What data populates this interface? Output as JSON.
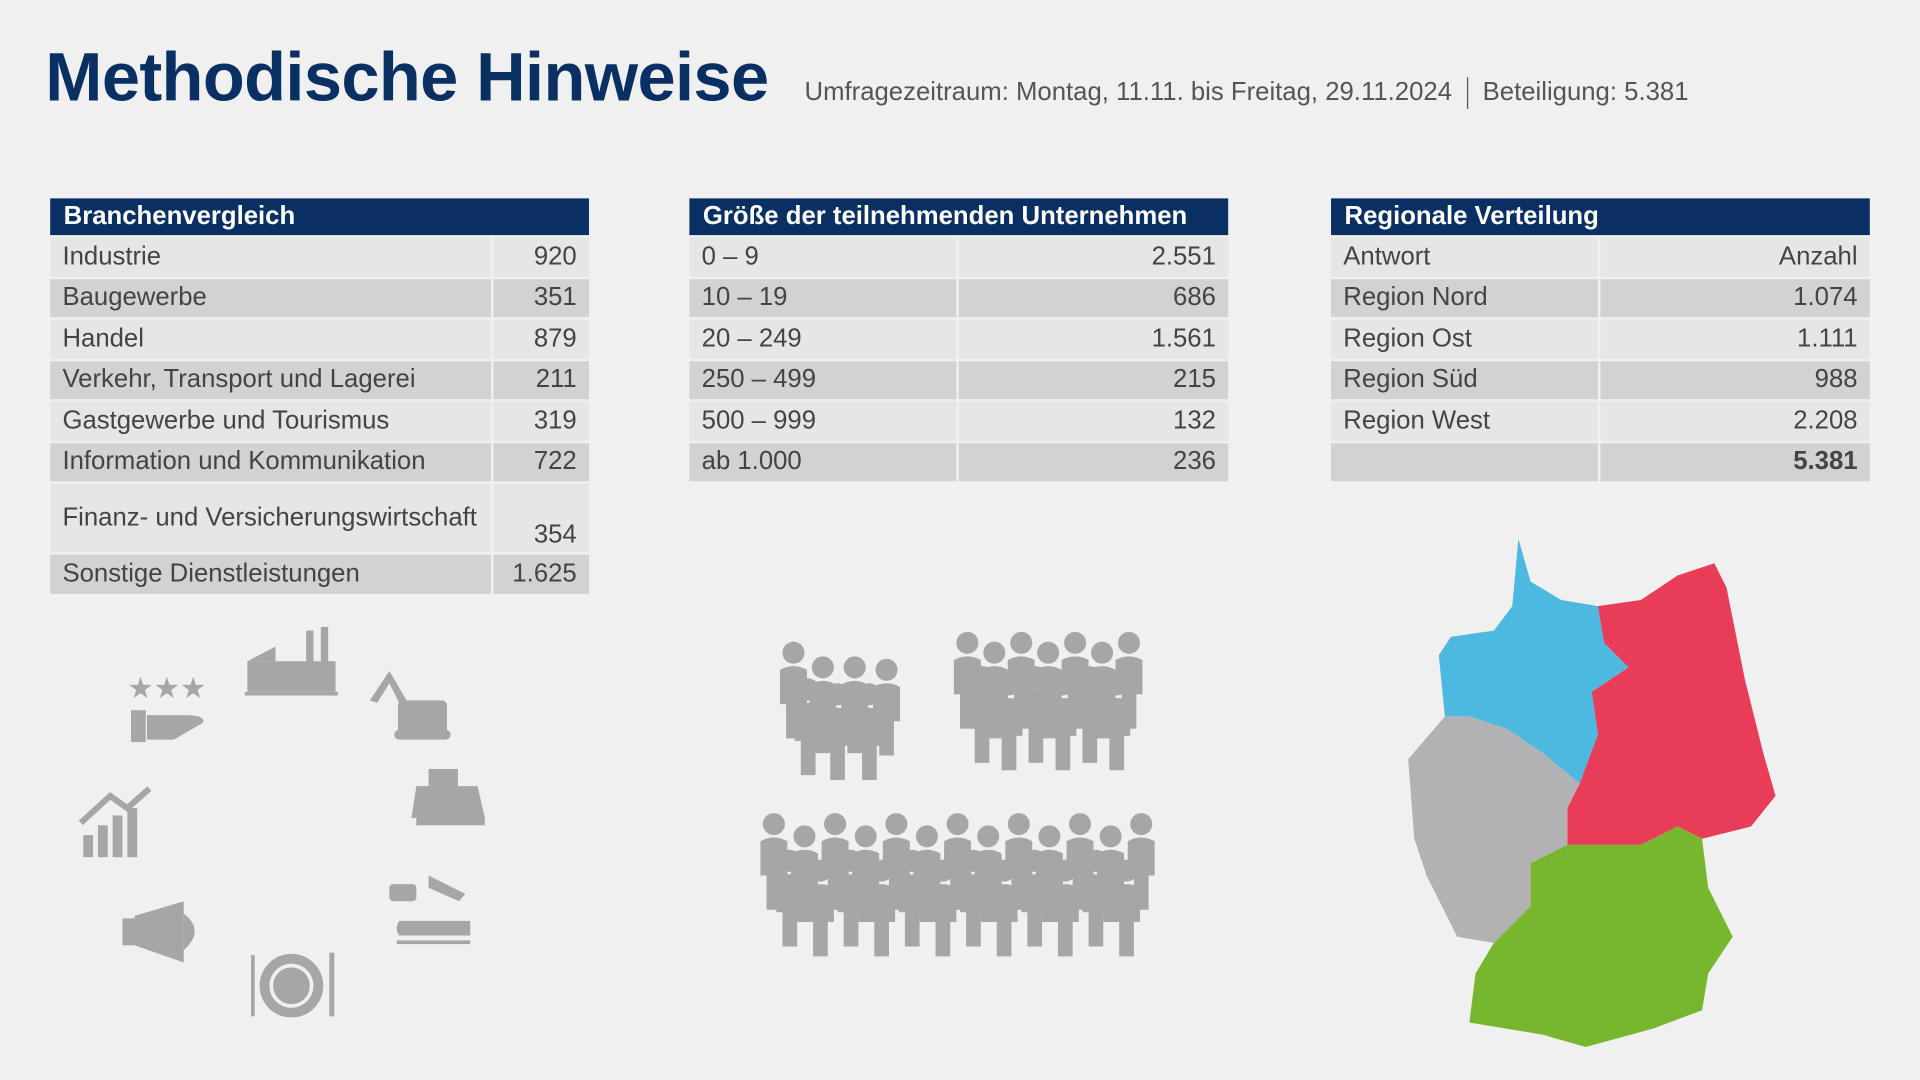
{
  "header": {
    "title": "Methodische Hinweise",
    "period": "Umfragezeitraum: Montag, 11.11. bis Freitag, 29.11.2024",
    "participation": "Beteiligung: 5.381"
  },
  "branchen": {
    "title": "Branchenvergleich",
    "rows": [
      {
        "label": "Industrie",
        "value": "920"
      },
      {
        "label": "Baugewerbe",
        "value": "351"
      },
      {
        "label": "Handel",
        "value": "879"
      },
      {
        "label": "Verkehr, Transport und Lagerei",
        "value": "211"
      },
      {
        "label": "Gastgewerbe und Tourismus",
        "value": "319"
      },
      {
        "label": "Information und Kommunikation",
        "value": "722"
      },
      {
        "label": "Finanz- und Versicherungswirtschaft",
        "value": "354"
      },
      {
        "label": "Sonstige Dienstleistungen",
        "value": "1.625"
      }
    ]
  },
  "groesse": {
    "title": "Größe der teilnehmenden Unternehmen",
    "rows": [
      {
        "label": "0 – 9",
        "value": "2.551"
      },
      {
        "label": "10 – 19",
        "value": "686"
      },
      {
        "label": "20 – 249",
        "value": "1.561"
      },
      {
        "label": "250 – 499",
        "value": "215"
      },
      {
        "label": "500 – 999",
        "value": "132"
      },
      {
        "label": "ab 1.000",
        "value": "236"
      }
    ]
  },
  "regional": {
    "title": "Regionale Verteilung",
    "col_label": "Antwort",
    "col_value": "Anzahl",
    "rows": [
      {
        "label": "Region Nord",
        "value": "1.074"
      },
      {
        "label": "Region Ost",
        "value": "1.111"
      },
      {
        "label": "Region Süd",
        "value": "988"
      },
      {
        "label": "Region West",
        "value": "2.208"
      }
    ],
    "total": "5.381"
  },
  "colors": {
    "navy": "#0a3063",
    "nord": "#4db8e0",
    "ost": "#e83c58",
    "sued": "#77b72e",
    "west": "#b2b2b4",
    "icon": "#a6a6a6"
  },
  "icons": [
    "factory-icon",
    "excavator-icon",
    "cash-register-icon",
    "transport-icon",
    "dining-icon",
    "megaphone-icon",
    "growth-chart-icon",
    "rating-hand-icon",
    "people-group-icon"
  ]
}
